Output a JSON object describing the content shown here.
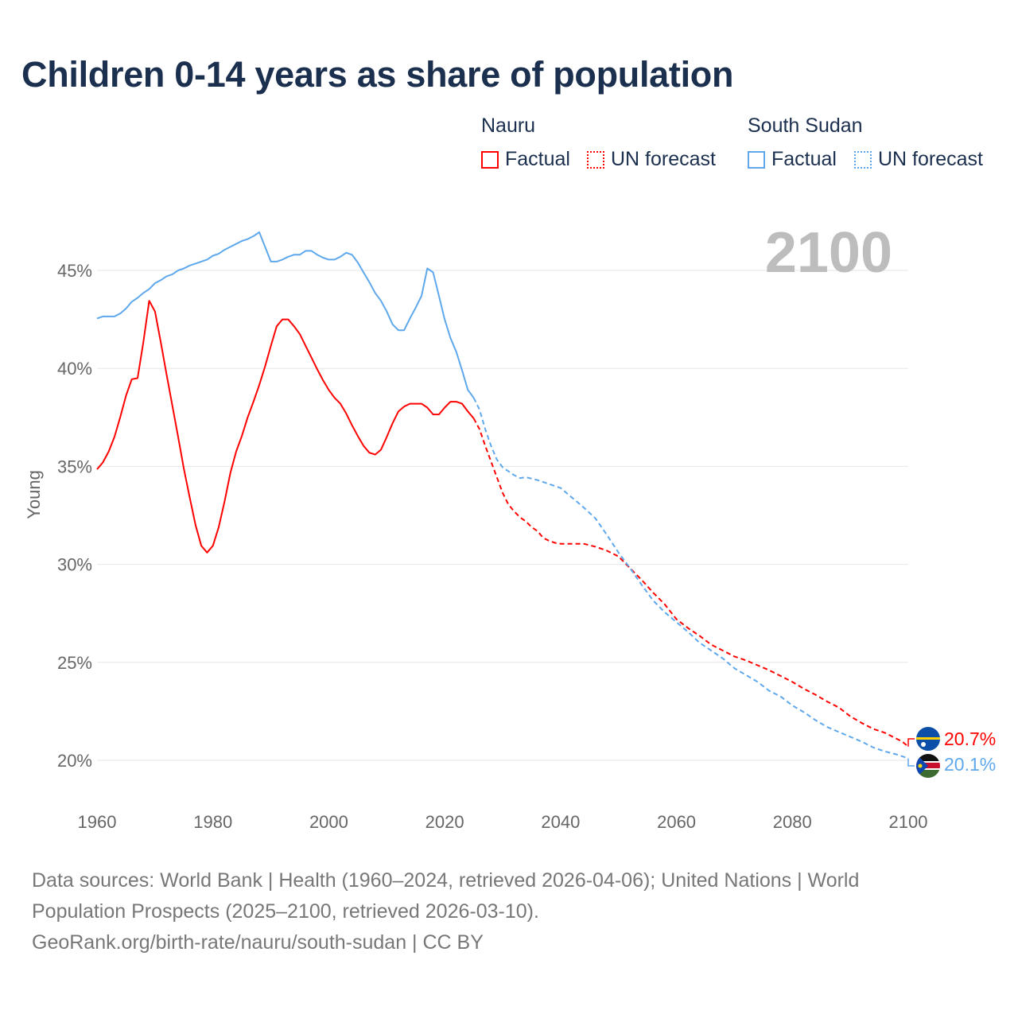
{
  "title": "Children 0-14 years as share of population",
  "legend": {
    "groups": [
      {
        "name": "Nauru",
        "color": "#ff0000",
        "factual": "Factual",
        "forecast": "UN forecast"
      },
      {
        "name": "South Sudan",
        "color": "#5ea8eb",
        "factual": "Factual",
        "forecast": "UN forecast"
      }
    ]
  },
  "year_display": "2100",
  "footer": {
    "line1": "Data sources: World Bank | Health (1960–2024, retrieved 2026-04-06); United Nations | World",
    "line2": "Population Prospects (2025–2100, retrieved 2026-03-10).",
    "line3": "GeoRank.org/birth-rate/nauru/south-sudan | CC BY"
  },
  "chart_data": {
    "type": "line",
    "title": "Children 0-14 years as share of population",
    "xlabel": "",
    "ylabel": "Young",
    "xlim": [
      1960,
      2100
    ],
    "ylim": [
      20,
      45
    ],
    "x_ticks": [
      "1960",
      "1980",
      "2000",
      "2020",
      "2040",
      "2060",
      "2080",
      "2100"
    ],
    "y_ticks": [
      "20%",
      "25%",
      "30%",
      "35%",
      "40%",
      "45%"
    ],
    "grid": true,
    "legend_position": "top-right",
    "series": [
      {
        "name": "Nauru",
        "color": "#ff0000",
        "end_label": "20.7%",
        "flag": "nauru-flag",
        "factual": {
          "x": [
            1960,
            1961,
            1962,
            1963,
            1964,
            1965,
            1966,
            1967,
            1968,
            1969,
            1970,
            1971,
            1972,
            1973,
            1974,
            1975,
            1976,
            1977,
            1978,
            1979,
            1980,
            1981,
            1982,
            1983,
            1984,
            1985,
            1986,
            1987,
            1988,
            1989,
            1990,
            1991,
            1992,
            1993,
            1994,
            1995,
            1996,
            1997,
            1998,
            1999,
            2000,
            2001,
            2002,
            2003,
            2004,
            2005,
            2006,
            2007,
            2008,
            2009,
            2010,
            2011,
            2012,
            2013,
            2014,
            2015,
            2016,
            2017,
            2018,
            2019,
            2020,
            2021,
            2022,
            2023,
            2024,
            2025
          ],
          "y": [
            34.85,
            35.2,
            35.75,
            36.5,
            37.5,
            38.6,
            39.45,
            39.5,
            41.35,
            43.45,
            42.9,
            41.35,
            39.7,
            38.1,
            36.5,
            34.85,
            33.4,
            32.0,
            30.95,
            30.6,
            30.95,
            31.9,
            33.2,
            34.65,
            35.75,
            36.55,
            37.5,
            38.3,
            39.15,
            40.1,
            41.15,
            42.15,
            42.5,
            42.5,
            42.15,
            41.75,
            41.15,
            40.55,
            39.95,
            39.4,
            38.9,
            38.5,
            38.2,
            37.7,
            37.1,
            36.55,
            36.05,
            35.7,
            35.6,
            35.85,
            36.5,
            37.2,
            37.8,
            38.05,
            38.2,
            38.2,
            38.2,
            38.0,
            37.65,
            37.65,
            38.0,
            38.3,
            38.3,
            38.2,
            37.8,
            37.45
          ]
        },
        "forecast": {
          "x": [
            2025,
            2026,
            2027,
            2028,
            2029,
            2030,
            2031,
            2032,
            2033,
            2034,
            2035,
            2036,
            2037,
            2038,
            2039,
            2040,
            2042,
            2044,
            2046,
            2048,
            2050,
            2052,
            2054,
            2056,
            2058,
            2060,
            2062,
            2064,
            2066,
            2068,
            2070,
            2072,
            2074,
            2076,
            2078,
            2080,
            2082,
            2084,
            2086,
            2088,
            2090,
            2092,
            2094,
            2096,
            2098,
            2099,
            2100
          ],
          "y": [
            37.45,
            36.9,
            36.05,
            35.25,
            34.45,
            33.65,
            33.05,
            32.7,
            32.4,
            32.2,
            31.9,
            31.7,
            31.35,
            31.2,
            31.1,
            31.05,
            31.05,
            31.05,
            30.9,
            30.7,
            30.4,
            29.8,
            29.2,
            28.55,
            27.95,
            27.2,
            26.75,
            26.35,
            25.9,
            25.6,
            25.3,
            25.1,
            24.85,
            24.6,
            24.3,
            24.0,
            23.65,
            23.35,
            23.0,
            22.7,
            22.25,
            21.9,
            21.6,
            21.4,
            21.1,
            20.95,
            20.7
          ]
        }
      },
      {
        "name": "South Sudan",
        "color": "#5ea8eb",
        "end_label": "20.1%",
        "flag": "south-sudan-flag",
        "factual": {
          "x": [
            1960,
            1961,
            1962,
            1963,
            1964,
            1965,
            1966,
            1967,
            1968,
            1969,
            1970,
            1971,
            1972,
            1973,
            1974,
            1975,
            1976,
            1977,
            1978,
            1979,
            1980,
            1981,
            1982,
            1983,
            1984,
            1985,
            1986,
            1987,
            1988,
            1989,
            1990,
            1991,
            1992,
            1993,
            1994,
            1995,
            1996,
            1997,
            1998,
            1999,
            2000,
            2001,
            2002,
            2003,
            2004,
            2005,
            2006,
            2007,
            2008,
            2009,
            2010,
            2011,
            2012,
            2013,
            2014,
            2015,
            2016,
            2017,
            2018,
            2019,
            2020,
            2021,
            2022,
            2023,
            2024,
            2025
          ],
          "y": [
            42.55,
            42.65,
            42.65,
            42.65,
            42.8,
            43.05,
            43.4,
            43.6,
            43.85,
            44.05,
            44.35,
            44.5,
            44.7,
            44.8,
            45.0,
            45.1,
            45.25,
            45.35,
            45.45,
            45.55,
            45.75,
            45.85,
            46.05,
            46.2,
            46.35,
            46.5,
            46.6,
            46.75,
            46.95,
            46.2,
            45.45,
            45.45,
            45.55,
            45.7,
            45.8,
            45.8,
            46.0,
            46.0,
            45.8,
            45.65,
            45.55,
            45.55,
            45.7,
            45.9,
            45.8,
            45.4,
            44.9,
            44.4,
            43.85,
            43.45,
            42.9,
            42.25,
            41.95,
            41.95,
            42.55,
            43.1,
            43.7,
            45.1,
            44.9,
            43.7,
            42.5,
            41.55,
            40.85,
            39.9,
            38.9,
            38.5
          ]
        },
        "forecast": {
          "x": [
            2025,
            2026,
            2027,
            2028,
            2029,
            2030,
            2031,
            2032,
            2033,
            2034,
            2036,
            2038,
            2040,
            2042,
            2044,
            2046,
            2048,
            2050,
            2052,
            2054,
            2056,
            2058,
            2060,
            2062,
            2064,
            2066,
            2068,
            2070,
            2072,
            2074,
            2076,
            2078,
            2080,
            2082,
            2084,
            2086,
            2088,
            2090,
            2092,
            2094,
            2096,
            2098,
            2100
          ],
          "y": [
            38.5,
            37.9,
            36.9,
            36.05,
            35.35,
            34.95,
            34.75,
            34.55,
            34.4,
            34.45,
            34.3,
            34.1,
            33.9,
            33.4,
            32.9,
            32.35,
            31.5,
            30.6,
            29.8,
            28.95,
            28.15,
            27.55,
            27.05,
            26.55,
            26.0,
            25.6,
            25.2,
            24.7,
            24.35,
            24.0,
            23.55,
            23.25,
            22.8,
            22.45,
            22.05,
            21.7,
            21.45,
            21.2,
            20.95,
            20.65,
            20.45,
            20.3,
            20.1
          ]
        }
      }
    ]
  }
}
